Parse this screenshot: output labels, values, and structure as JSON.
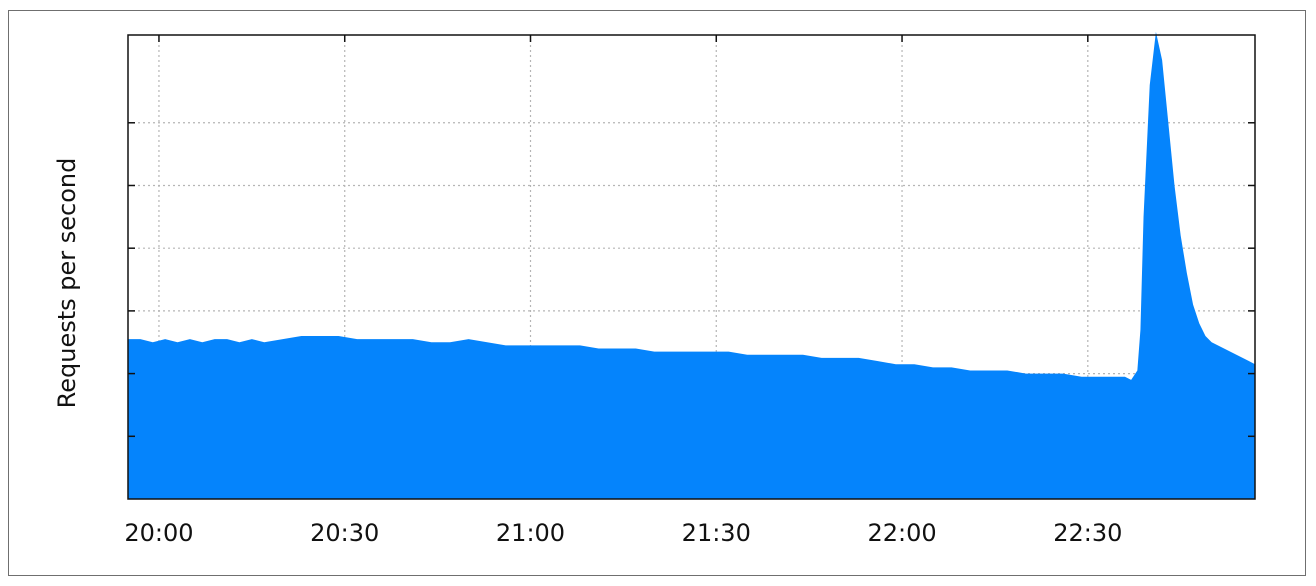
{
  "chart_data": {
    "type": "area",
    "title": "",
    "xlabel": "",
    "ylabel": "Requests per second",
    "x_ticks": [
      "20:00",
      "20:30",
      "21:00",
      "21:30",
      "22:00",
      "22:30"
    ],
    "y_tick_count": 7,
    "y_tick_labels": [],
    "grid": true,
    "legend": "none",
    "colors": {
      "fill": "#0584fc",
      "grid": "#b5b5b5",
      "axis": "#111111"
    },
    "x_unit": "minutes after 20:00",
    "xlim": [
      -5,
      177
    ],
    "ylim": [
      0,
      7.4
    ],
    "series": [
      {
        "x": [
          -5,
          -3,
          -1,
          1,
          3,
          5,
          7,
          9,
          11,
          13,
          15,
          17,
          20,
          23,
          26,
          29,
          32,
          35,
          38,
          41,
          44,
          47,
          50,
          53,
          56,
          59,
          62,
          65,
          68,
          71,
          74,
          77,
          80,
          83,
          86,
          89,
          92,
          95,
          98,
          101,
          104,
          107,
          110,
          113,
          116,
          119,
          122,
          125,
          128,
          131,
          134,
          137,
          140,
          143,
          146,
          149,
          152,
          155,
          156,
          157,
          158,
          158.5,
          159,
          160,
          161,
          162,
          163,
          164,
          165,
          166,
          167,
          168,
          169,
          170,
          171,
          172,
          173,
          174,
          175,
          176,
          177
        ],
        "y": [
          2.55,
          2.55,
          2.5,
          2.55,
          2.5,
          2.55,
          2.5,
          2.55,
          2.55,
          2.5,
          2.55,
          2.5,
          2.55,
          2.6,
          2.6,
          2.6,
          2.55,
          2.55,
          2.55,
          2.55,
          2.5,
          2.5,
          2.55,
          2.5,
          2.45,
          2.45,
          2.45,
          2.45,
          2.45,
          2.4,
          2.4,
          2.4,
          2.35,
          2.35,
          2.35,
          2.35,
          2.35,
          2.3,
          2.3,
          2.3,
          2.3,
          2.25,
          2.25,
          2.25,
          2.2,
          2.15,
          2.15,
          2.1,
          2.1,
          2.05,
          2.05,
          2.05,
          2.0,
          2.0,
          2.0,
          1.95,
          1.95,
          1.95,
          1.95,
          1.9,
          2.05,
          2.7,
          4.5,
          6.6,
          7.45,
          7.0,
          6.0,
          5.0,
          4.2,
          3.6,
          3.1,
          2.8,
          2.6,
          2.5,
          2.45,
          2.4,
          2.35,
          2.3,
          2.25,
          2.2,
          2.15
        ]
      }
    ]
  }
}
